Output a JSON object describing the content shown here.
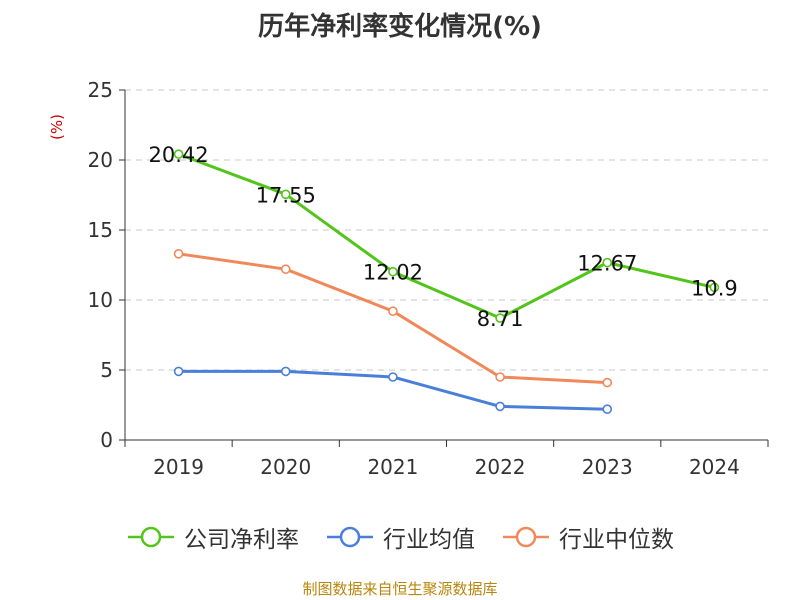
{
  "chart_data": {
    "type": "line",
    "title": "历年净利率变化情况(%)",
    "ylabel": "(%)",
    "xlabel": "",
    "ylim": [
      0,
      25
    ],
    "yticks": [
      0,
      5,
      10,
      15,
      20,
      25
    ],
    "categories": [
      "2019",
      "2020",
      "2021",
      "2022",
      "2023",
      "2024"
    ],
    "grid": true,
    "legend_position": "bottom",
    "series": [
      {
        "name": "公司净利率",
        "color": "#52c41a",
        "values": [
          20.42,
          17.55,
          12.02,
          8.71,
          12.67,
          10.9
        ],
        "labels": [
          "20.42",
          "17.55",
          "12.02",
          "8.71",
          "12.67",
          "10.9"
        ],
        "show_labels": true
      },
      {
        "name": "行业均值",
        "color": "#4a7fd9",
        "values": [
          4.9,
          4.9,
          4.5,
          2.4,
          2.2,
          null
        ],
        "show_labels": false
      },
      {
        "name": "行业中位数",
        "color": "#f0895a",
        "values": [
          13.3,
          12.2,
          9.2,
          4.5,
          4.1,
          null
        ],
        "show_labels": false
      }
    ],
    "source": "制图数据来自恒生聚源数据库"
  }
}
